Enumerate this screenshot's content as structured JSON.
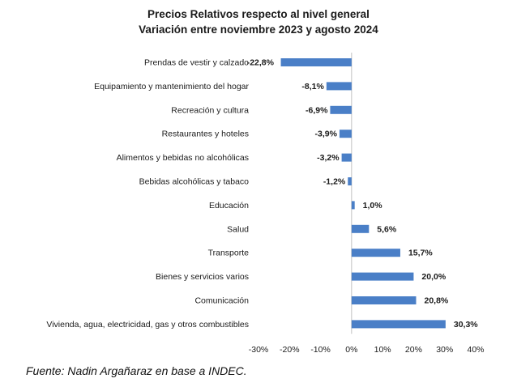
{
  "chart_data": {
    "type": "bar",
    "orientation": "horizontal",
    "title_lines": [
      "Precios Relativos respecto al nivel general",
      "Variación entre noviembre 2023 y agosto 2024"
    ],
    "categories": [
      "Prendas de vestir y calzado",
      "Equipamiento y mantenimiento del hogar",
      "Recreación y cultura",
      "Restaurantes y hoteles",
      "Alimentos y bebidas no alcohólicas",
      "Bebidas alcohólicas y tabaco",
      "Educación",
      "Salud",
      "Transporte",
      "Bienes y servicios varios",
      "Comunicación",
      "Vivienda, agua, electricidad, gas y otros combustibles"
    ],
    "values": [
      -22.8,
      -8.1,
      -6.9,
      -3.9,
      -3.2,
      -1.2,
      1.0,
      5.6,
      15.7,
      20.0,
      20.8,
      30.3
    ],
    "value_labels": [
      "-22,8%",
      "-8,1%",
      "-6,9%",
      "-3,9%",
      "-3,2%",
      "-1,2%",
      "1,0%",
      "5,6%",
      "15,7%",
      "20,0%",
      "20,8%",
      "30,3%"
    ],
    "xlim": [
      -30,
      40
    ],
    "xticks": [
      -30,
      -20,
      -10,
      0,
      10,
      20,
      30,
      40
    ],
    "xtick_labels": [
      "-30%",
      "-20%",
      "-10%",
      "0%",
      "10%",
      "20%",
      "30%",
      "40%"
    ],
    "bar_color": "#4a7fc7",
    "grid": false,
    "legend": "none"
  },
  "source_note": "Fuente: Nadin Argañaraz en base a INDEC."
}
